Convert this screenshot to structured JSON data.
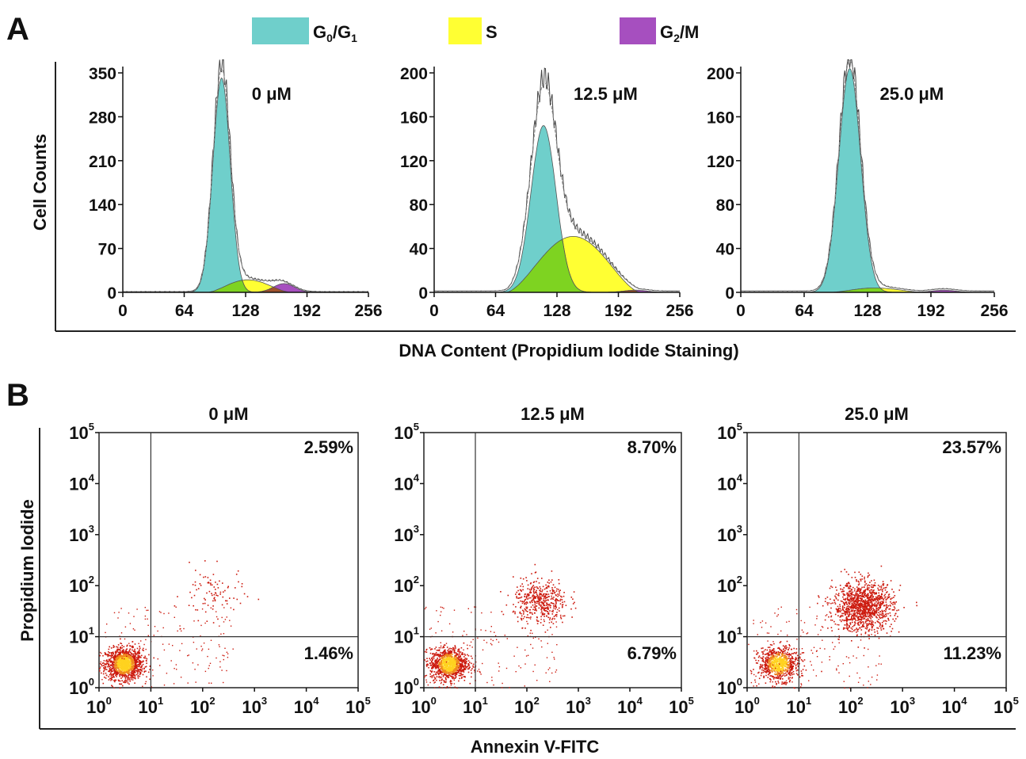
{
  "panels": {
    "a_label": "A",
    "b_label": "B"
  },
  "colors": {
    "g0g1": "#6fcfcb",
    "s": "#ffff33",
    "g2m": "#a64fbf",
    "overlap_s_g1": "#7ed321",
    "overlap_s_g2m": "#a0522d",
    "dot": "#cc1a0e",
    "dense": "#ffd21f"
  },
  "legend": {
    "items": [
      {
        "key": "g0g1",
        "label": "G0/G1",
        "color": "#6fcfcb"
      },
      {
        "key": "s",
        "label": "S",
        "color": "#ffff33"
      },
      {
        "key": "g2m",
        "label": "G2/M",
        "color": "#a64fbf"
      }
    ]
  },
  "chart_data": [
    {
      "type": "area",
      "panel": "A",
      "title": "0 μM",
      "ylabel": "Cell Counts",
      "xlabel": "DNA Content (Propidium Iodide Staining)",
      "xlim": [
        0,
        256
      ],
      "ylim": [
        0,
        350
      ],
      "xticks": [
        "0",
        "64",
        "128",
        "192",
        "256"
      ],
      "yticks": [
        "0",
        "70",
        "140",
        "210",
        "280",
        "350"
      ],
      "series": [
        {
          "name": "G0/G1",
          "peak_x": 103,
          "peak_y": 342
        },
        {
          "name": "S",
          "peak_x": 130,
          "peak_y": 20
        },
        {
          "name": "G2/M",
          "peak_x": 168,
          "peak_y": 14
        }
      ]
    },
    {
      "type": "area",
      "panel": "A",
      "title": "12.5 μM",
      "xlim": [
        0,
        256
      ],
      "ylim": [
        0,
        200
      ],
      "xticks": [
        "0",
        "64",
        "128",
        "192",
        "256"
      ],
      "yticks": [
        "0",
        "40",
        "80",
        "120",
        "160",
        "200"
      ],
      "series": [
        {
          "name": "G0/G1",
          "peak_x": 114,
          "peak_y": 152
        },
        {
          "name": "S",
          "peak_x": 145,
          "peak_y": 51
        },
        {
          "name": "G2/M",
          "peak_x": 210,
          "peak_y": 2
        }
      ]
    },
    {
      "type": "area",
      "panel": "A",
      "title": "25.0 μM",
      "xlim": [
        0,
        256
      ],
      "ylim": [
        0,
        200
      ],
      "xticks": [
        "0",
        "64",
        "128",
        "192",
        "256"
      ],
      "yticks": [
        "0",
        "40",
        "80",
        "120",
        "160",
        "200"
      ],
      "series": [
        {
          "name": "G0/G1",
          "peak_x": 110,
          "peak_y": 204
        },
        {
          "name": "S",
          "peak_x": 135,
          "peak_y": 4
        },
        {
          "name": "G2/M",
          "peak_x": 205,
          "peak_y": 2
        }
      ]
    },
    {
      "type": "scatter",
      "panel": "B",
      "title": "0 μM",
      "ylabel": "Propidium Iodide",
      "xlabel": "Annexin V-FITC",
      "scale": "log",
      "xlim": [
        1,
        100000
      ],
      "ylim": [
        1,
        100000
      ],
      "gate": [
        10,
        10
      ],
      "quadrants": {
        "upper_right": "2.59%",
        "lower_right": "1.46%"
      },
      "clusters": [
        {
          "x": 3,
          "y": 3,
          "count": 1300,
          "spread": 0.15,
          "dense": true
        },
        {
          "x": 150,
          "y": 70,
          "count": 90,
          "spread": 0.25
        }
      ]
    },
    {
      "type": "scatter",
      "panel": "B",
      "title": "12.5 μM",
      "scale": "log",
      "xlim": [
        1,
        100000
      ],
      "ylim": [
        1,
        100000
      ],
      "gate": [
        10,
        10
      ],
      "quadrants": {
        "upper_right": "8.70%",
        "lower_right": "6.79%"
      },
      "clusters": [
        {
          "x": 3,
          "y": 3,
          "count": 1100,
          "spread": 0.15,
          "dense": true
        },
        {
          "x": 180,
          "y": 50,
          "count": 450,
          "spread": 0.22
        }
      ]
    },
    {
      "type": "scatter",
      "panel": "B",
      "title": "25.0 μM",
      "scale": "log",
      "xlim": [
        1,
        100000
      ],
      "ylim": [
        1,
        100000
      ],
      "gate": [
        10,
        10
      ],
      "quadrants": {
        "upper_right": "23.57%",
        "lower_right": "11.23%"
      },
      "clusters": [
        {
          "x": 4,
          "y": 3,
          "count": 800,
          "spread": 0.16,
          "dense": true
        },
        {
          "x": 170,
          "y": 40,
          "count": 1200,
          "spread": 0.24
        }
      ]
    }
  ]
}
